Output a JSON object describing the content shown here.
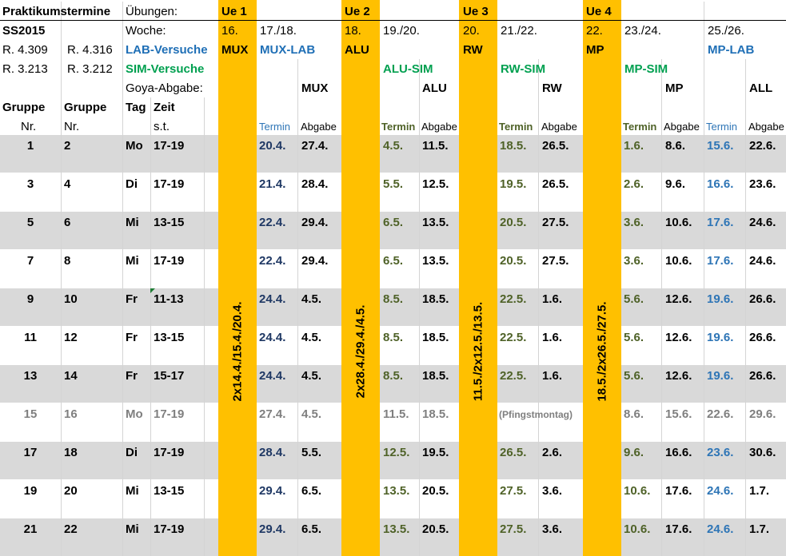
{
  "sheet": {
    "title": "Praktikumstermine",
    "semester": "SS2015",
    "uebungen_label": "Übungen:",
    "woche_label": "Woche:",
    "goya_label": "Goya-Abgabe:",
    "lab_versuche_label": "LAB-Versuche",
    "sim_versuche_label": "SIM-Versuche",
    "rooms": {
      "lab_a": "R. 4.309",
      "lab_b": "R. 4.316",
      "sim_a": "R. 3.213",
      "sim_b": "R. 3.212"
    },
    "colors": {
      "orange": "#ffc000",
      "band": "#d9d9d9",
      "lab_blue": "#1f6fb6",
      "sim_green": "#00a050",
      "termin_navy": "#1f3864",
      "termin_olive": "#4f6228"
    }
  },
  "headers": {
    "ue1": "Ue 1",
    "ue2": "Ue 2",
    "ue3": "Ue 3",
    "ue4": "Ue 4",
    "weeks": {
      "w16": "16.",
      "w17": "17./18.",
      "w18": "18.",
      "w19": "19./20.",
      "w20": "20.",
      "w21": "21./22.",
      "w22": "22.",
      "w23": "23./24.",
      "w25": "25./26."
    },
    "topics": {
      "mux": "MUX",
      "mux_lab": "MUX-LAB",
      "alu": "ALU",
      "alu_sim": "ALU-SIM",
      "rw": "RW",
      "rw_sim": "RW-SIM",
      "mp": "MP",
      "mp_sim": "MP-SIM",
      "mp_lab": "MP-LAB"
    },
    "goya": {
      "mux": "MUX",
      "alu": "ALU",
      "rw": "RW",
      "mp": "MP",
      "all": "ALL"
    },
    "columns": {
      "gruppe1": "Gruppe",
      "gruppe2": "Gruppe",
      "tag": "Tag",
      "zeit": "Zeit",
      "nr1": "Nr.",
      "nr2": "Nr.",
      "st": "s.t."
    },
    "sub": {
      "termin": "Termin",
      "abgabe": "Abgabe"
    }
  },
  "ue_dates": {
    "ue1": "2x14.4./15.4./20.4.",
    "ue2": "2x28.4./29.4./4.5.",
    "ue3": "11.5./2x12.5./13.5.",
    "ue4": "18.5./2x26.5./27.5."
  },
  "rows": [
    {
      "g1": "1",
      "g2": "2",
      "tag": "Mo",
      "zeit": "17-19",
      "mux_t": "20.4.",
      "mux_a": "27.4.",
      "alu_t": "4.5.",
      "alu_a": "11.5.",
      "rw_t": "18.5.",
      "rw_a": "26.5.",
      "mp_t": "1.6.",
      "mp_a": "8.6.",
      "lab_t": "15.6.",
      "lab_a": "22.6."
    },
    {
      "g1": "3",
      "g2": "4",
      "tag": "Di",
      "zeit": "17-19",
      "mux_t": "21.4.",
      "mux_a": "28.4.",
      "alu_t": "5.5.",
      "alu_a": "12.5.",
      "rw_t": "19.5.",
      "rw_a": "26.5.",
      "mp_t": "2.6.",
      "mp_a": "9.6.",
      "lab_t": "16.6.",
      "lab_a": "23.6."
    },
    {
      "g1": "5",
      "g2": "6",
      "tag": "Mi",
      "zeit": "13-15",
      "mux_t": "22.4.",
      "mux_a": "29.4.",
      "alu_t": "6.5.",
      "alu_a": "13.5.",
      "rw_t": "20.5.",
      "rw_a": "27.5.",
      "mp_t": "3.6.",
      "mp_a": "10.6.",
      "lab_t": "17.6.",
      "lab_a": "24.6."
    },
    {
      "g1": "7",
      "g2": "8",
      "tag": "Mi",
      "zeit": "17-19",
      "mux_t": "22.4.",
      "mux_a": "29.4.",
      "alu_t": "6.5.",
      "alu_a": "13.5.",
      "rw_t": "20.5.",
      "rw_a": "27.5.",
      "mp_t": "3.6.",
      "mp_a": "10.6.",
      "lab_t": "17.6.",
      "lab_a": "24.6."
    },
    {
      "g1": "9",
      "g2": "10",
      "tag": "Fr",
      "zeit": "11-13",
      "mux_t": "24.4.",
      "mux_a": "4.5.",
      "alu_t": "8.5.",
      "alu_a": "18.5.",
      "rw_t": "22.5.",
      "rw_a": "1.6.",
      "mp_t": "5.6.",
      "mp_a": "12.6.",
      "lab_t": "19.6.",
      "lab_a": "26.6."
    },
    {
      "g1": "11",
      "g2": "12",
      "tag": "Fr",
      "zeit": "13-15",
      "mux_t": "24.4.",
      "mux_a": "4.5.",
      "alu_t": "8.5.",
      "alu_a": "18.5.",
      "rw_t": "22.5.",
      "rw_a": "1.6.",
      "mp_t": "5.6.",
      "mp_a": "12.6.",
      "lab_t": "19.6.",
      "lab_a": "26.6."
    },
    {
      "g1": "13",
      "g2": "14",
      "tag": "Fr",
      "zeit": "15-17",
      "mux_t": "24.4.",
      "mux_a": "4.5.",
      "alu_t": "8.5.",
      "alu_a": "18.5.",
      "rw_t": "22.5.",
      "rw_a": "1.6.",
      "mp_t": "5.6.",
      "mp_a": "12.6.",
      "lab_t": "19.6.",
      "lab_a": "26.6."
    },
    {
      "g1": "15",
      "g2": "16",
      "tag": "Mo",
      "zeit": "17-19",
      "mux_t": "27.4.",
      "mux_a": "4.5.",
      "alu_t": "11.5.",
      "alu_a": "18.5.",
      "rw_note": "(Pfingstmontag)",
      "mp_t": "8.6.",
      "mp_a": "15.6.",
      "lab_t": "22.6.",
      "lab_a": "29.6."
    },
    {
      "g1": "17",
      "g2": "18",
      "tag": "Di",
      "zeit": "17-19",
      "mux_t": "28.4.",
      "mux_a": "5.5.",
      "alu_t": "12.5.",
      "alu_a": "19.5.",
      "rw_t": "26.5.",
      "rw_a": "2.6.",
      "mp_t": "9.6.",
      "mp_a": "16.6.",
      "lab_t": "23.6.",
      "lab_a": "30.6."
    },
    {
      "g1": "19",
      "g2": "20",
      "tag": "Mi",
      "zeit": "13-15",
      "mux_t": "29.4.",
      "mux_a": "6.5.",
      "alu_t": "13.5.",
      "alu_a": "20.5.",
      "rw_t": "27.5.",
      "rw_a": "3.6.",
      "mp_t": "10.6.",
      "mp_a": "17.6.",
      "lab_t": "24.6.",
      "lab_a": "1.7."
    },
    {
      "g1": "21",
      "g2": "22",
      "tag": "Mi",
      "zeit": "17-19",
      "mux_t": "29.4.",
      "mux_a": "6.5.",
      "alu_t": "13.5.",
      "alu_a": "20.5.",
      "rw_t": "27.5.",
      "rw_a": "3.6.",
      "mp_t": "10.6.",
      "mp_a": "17.6.",
      "lab_t": "24.6.",
      "lab_a": "1.7."
    }
  ]
}
